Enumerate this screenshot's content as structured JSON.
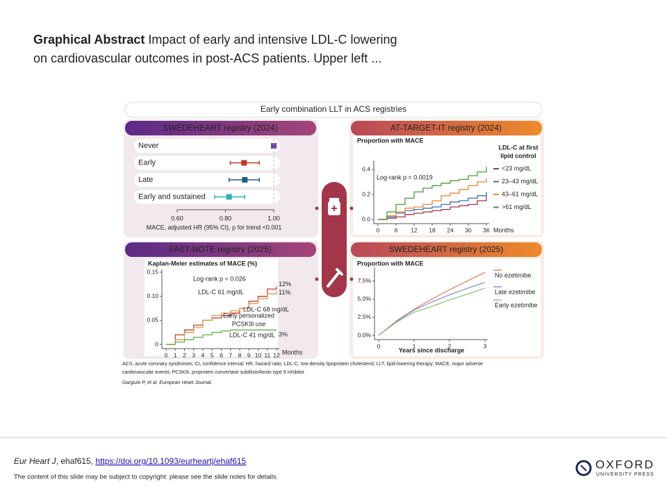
{
  "slide": {
    "title_bold": "Graphical Abstract",
    "title_line1": "Impact of early and intensive LDL-C lowering",
    "title_line2": "on cardiovascular outcomes in post-ACS patients. Upper left ..."
  },
  "abstract": {
    "banner": "Early combination LLT in ACS registries",
    "forest": {
      "title": "SWEDEHEART registry (2024)",
      "rows": [
        {
          "label": "Never",
          "hr": 1.0,
          "color": "#6b3fa0"
        },
        {
          "label": "Early",
          "hr": 0.877,
          "lo": 0.82,
          "hi": 0.94,
          "color": "#c0392b"
        },
        {
          "label": "Late",
          "hr": 0.88,
          "lo": 0.815,
          "hi": 0.94,
          "color": "#1f5f8b"
        },
        {
          "label": "Early and sustained",
          "hr": 0.815,
          "lo": 0.755,
          "hi": 0.88,
          "color": "#2ab0b0"
        }
      ],
      "xlim": [
        0.6,
        1.0
      ],
      "xticks": [
        {
          "value": 0.6,
          "label": "0.60"
        },
        {
          "value": 0.8,
          "label": "0.80"
        },
        {
          "value": 1.0,
          "label": "1.00"
        }
      ],
      "xlabel": "MACE, adjusted HR (95% CI), p for trend <0.001"
    },
    "km1": {
      "type": "step",
      "title": "AT-TARGET-IT registry (2024)",
      "ylabel": "Proportion with MACE",
      "xlabel": "Months",
      "annotation": "Log-rank p = 0.0019",
      "legend_title": [
        "LDL-C at first",
        "lipid control"
      ],
      "x": [
        0,
        3,
        6,
        9,
        12,
        15,
        18,
        21,
        24,
        27,
        30,
        33,
        36
      ],
      "series": [
        {
          "name": "<23 mg/dL",
          "color": "#a8324a",
          "values": [
            0,
            0.01,
            0.02,
            0.04,
            0.05,
            0.06,
            0.07,
            0.08,
            0.1,
            0.11,
            0.12,
            0.15,
            0.2
          ]
        },
        {
          "name": "23–43 mg/dL",
          "color": "#3d6fb6",
          "values": [
            0,
            0.02,
            0.05,
            0.07,
            0.08,
            0.09,
            0.1,
            0.12,
            0.14,
            0.15,
            0.17,
            0.19,
            0.22
          ]
        },
        {
          "name": "43–61 mg/dL",
          "color": "#e58a2e",
          "values": [
            0,
            0.03,
            0.06,
            0.09,
            0.1,
            0.12,
            0.15,
            0.19,
            0.21,
            0.24,
            0.27,
            0.3,
            0.33
          ]
        },
        {
          "name": ">61 mg/dL",
          "color": "#4a9a3a",
          "values": [
            0,
            0.06,
            0.12,
            0.17,
            0.22,
            0.25,
            0.27,
            0.29,
            0.31,
            0.32,
            0.35,
            0.38,
            0.42
          ]
        }
      ],
      "xlim": [
        0,
        36
      ],
      "xticks": [
        0,
        6,
        12,
        18,
        24,
        30,
        36
      ],
      "ylim": [
        0,
        0.45
      ],
      "yticks": [
        {
          "value": 0,
          "label": "0.0"
        },
        {
          "value": 0.2,
          "label": "0.2"
        },
        {
          "value": 0.4,
          "label": "0.4"
        }
      ]
    },
    "km2": {
      "type": "step",
      "title": "FAST-NOTE registry (2025)",
      "ylabel": "Kaplan-Meier estimates of MACE (%)",
      "xlabel": "Months",
      "annotations": [
        "Log-rank p = 0.026",
        "Early personalized",
        "PCSK9i use"
      ],
      "x": [
        0,
        1,
        2,
        3,
        4,
        5,
        6,
        7,
        8,
        9,
        10,
        11,
        12
      ],
      "series": [
        {
          "name": "LDL-C 68 mg/dL",
          "end_label": "12%",
          "color": "#c0392b",
          "values": [
            0,
            0.02,
            0.03,
            0.04,
            0.05,
            0.055,
            0.06,
            0.065,
            0.075,
            0.09,
            0.1,
            0.115,
            0.12
          ]
        },
        {
          "name": "LDL-C 61 mg/dL",
          "end_label": "11%",
          "color": "#e59a4a",
          "values": [
            0,
            0.01,
            0.025,
            0.035,
            0.05,
            0.06,
            0.065,
            0.07,
            0.075,
            0.085,
            0.095,
            0.105,
            0.11
          ]
        },
        {
          "name": "LDL-C 41 mg/dL",
          "end_label": "3%",
          "color": "#5fb24a",
          "values": [
            0,
            0.005,
            0.01,
            0.015,
            0.02,
            0.025,
            0.028,
            0.03,
            0.03,
            0.03,
            0.03,
            0.03,
            0.03
          ]
        }
      ],
      "xlim": [
        0,
        12
      ],
      "xticks": [
        0,
        1,
        2,
        3,
        4,
        5,
        6,
        7,
        8,
        9,
        10,
        11,
        12
      ],
      "ylim": [
        0,
        0.15
      ],
      "yticks": [
        0,
        0.05,
        {
          "value": 0.1,
          "label": "0.10"
        },
        0.15
      ]
    },
    "km3": {
      "type": "line",
      "title": "SWEDEHEART registry (2025)",
      "ylabel": "Proportion with MACE",
      "xlabel": "Years since discharge",
      "x": [
        0,
        0.5,
        1,
        1.5,
        2,
        2.5,
        3
      ],
      "series": [
        {
          "name": "No ezetimibe",
          "color": "#e0845a",
          "values": [
            0,
            2.0,
            3.6,
            5.0,
            6.3,
            7.5,
            8.7
          ]
        },
        {
          "name": "Late ezetimibe",
          "color": "#8a8fd8",
          "values": [
            0,
            1.9,
            3.5,
            4.6,
            5.6,
            6.5,
            7.3
          ]
        },
        {
          "name": "Early ezetimibe",
          "color": "#8cc87a",
          "values": [
            0,
            1.8,
            3.2,
            4.0,
            4.9,
            5.7,
            6.5
          ]
        }
      ],
      "xlim": [
        0,
        3
      ],
      "xticks": [
        0,
        1,
        2,
        3
      ],
      "ylim": [
        0,
        9
      ],
      "yticks": [
        {
          "value": 0,
          "label": "0.0%"
        },
        {
          "value": 2.5,
          "label": "2.5%"
        },
        {
          "value": 5,
          "label": "5.0%"
        },
        {
          "value": 7.5,
          "label": "7.5%"
        }
      ]
    },
    "footnote": [
      "ACS, acute coronary syndromes; CI, confidence interval; HR, hazard ratio; LDL-C, low-density lipoprotein cholesterol; LLT, lipid-lowering therapy; MACE, major adverse",
      "cardiovascular events; PCSK9i, proprotein convertase subtilisin/kexin type 9 inhibitor"
    ],
    "citation": "Gargiulo P, et al. European Heart Journal."
  },
  "footer": {
    "journal": "Eur Heart J",
    "article": ", ehaf615, ",
    "link": "https://doi.org/10.1093/eurheartj/ehaf615",
    "copyright": "The content of this slide may be subject to copyright: please see the slide notes for details.",
    "logo": "OXFORD",
    "logo_sub": "UNIVERSITY PRESS"
  }
}
